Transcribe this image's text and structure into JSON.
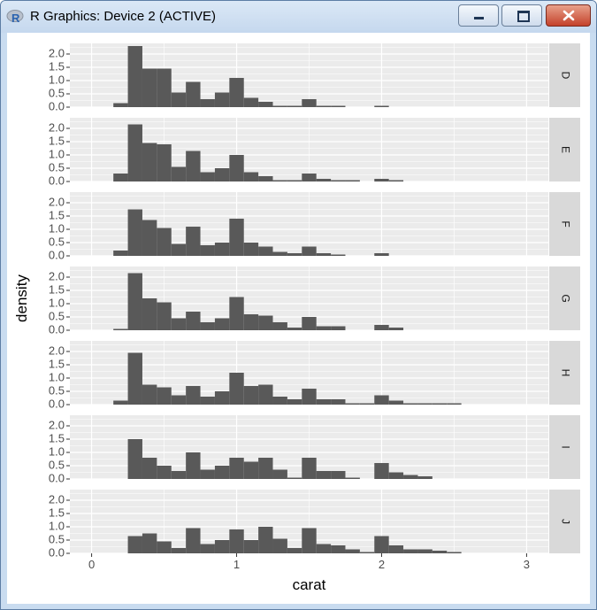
{
  "window": {
    "title": "R Graphics: Device 2 (ACTIVE)",
    "app_icon_letter": "R",
    "buttons": {
      "minimize": "minimize",
      "maximize": "maximize",
      "close": "close"
    }
  },
  "colors": {
    "panel_bg": "#ebebeb",
    "strip_bg": "#d9d9d9",
    "bar": "#595959",
    "grid": "#ffffff",
    "text": "#4d4d4d"
  },
  "chart_data": {
    "type": "bar",
    "title": "",
    "xlabel": "carat",
    "ylabel": "density",
    "xlim": [
      -0.15,
      3.15
    ],
    "ylim": [
      0,
      2.4
    ],
    "x_ticks": [
      0,
      1,
      2,
      3
    ],
    "x_tick_labels": [
      "0",
      "1",
      "2",
      "3"
    ],
    "y_ticks": [
      0,
      0.5,
      1,
      1.5,
      2
    ],
    "y_tick_labels": [
      "0.0",
      "0.5",
      "1.0",
      "1.5",
      "2.0"
    ],
    "bin_width": 0.1,
    "bin_starts": [
      0.15,
      0.25,
      0.35,
      0.45,
      0.55,
      0.65,
      0.75,
      0.85,
      0.95,
      1.05,
      1.15,
      1.25,
      1.35,
      1.45,
      1.55,
      1.65,
      1.75,
      1.85,
      1.95,
      2.05,
      2.15,
      2.25,
      2.35,
      2.45,
      2.55
    ],
    "facets": [
      {
        "label": "D",
        "values": [
          0.15,
          2.3,
          1.45,
          1.45,
          0.55,
          0.95,
          0.3,
          0.55,
          1.1,
          0.35,
          0.2,
          0.05,
          0.05,
          0.3,
          0.05,
          0.05,
          0,
          0,
          0.05,
          0,
          0,
          0,
          0,
          0,
          0
        ]
      },
      {
        "label": "E",
        "values": [
          0.3,
          2.15,
          1.45,
          1.4,
          0.55,
          1.15,
          0.35,
          0.5,
          1.0,
          0.35,
          0.2,
          0.05,
          0.05,
          0.3,
          0.1,
          0.05,
          0.05,
          0,
          0.1,
          0.05,
          0,
          0,
          0,
          0,
          0
        ]
      },
      {
        "label": "F",
        "values": [
          0.2,
          1.75,
          1.35,
          1.05,
          0.45,
          1.1,
          0.4,
          0.5,
          1.4,
          0.5,
          0.35,
          0.15,
          0.1,
          0.35,
          0.1,
          0.05,
          0,
          0,
          0.1,
          0,
          0,
          0,
          0,
          0,
          0
        ]
      },
      {
        "label": "G",
        "values": [
          0.05,
          2.15,
          1.2,
          1.05,
          0.45,
          0.7,
          0.3,
          0.45,
          1.25,
          0.6,
          0.55,
          0.3,
          0.1,
          0.5,
          0.15,
          0.15,
          0,
          0,
          0.2,
          0.1,
          0,
          0,
          0,
          0,
          0
        ]
      },
      {
        "label": "H",
        "values": [
          0.15,
          1.95,
          0.75,
          0.65,
          0.35,
          0.7,
          0.3,
          0.5,
          1.2,
          0.7,
          0.75,
          0.3,
          0.2,
          0.6,
          0.2,
          0.2,
          0.05,
          0.05,
          0.35,
          0.15,
          0.05,
          0.05,
          0.05,
          0.05,
          0
        ]
      },
      {
        "label": "I",
        "values": [
          0,
          1.5,
          0.8,
          0.5,
          0.3,
          1.0,
          0.35,
          0.5,
          0.8,
          0.65,
          0.8,
          0.35,
          0.05,
          0.8,
          0.3,
          0.3,
          0.05,
          0,
          0.6,
          0.25,
          0.15,
          0.1,
          0,
          0,
          0
        ]
      },
      {
        "label": "J",
        "values": [
          0,
          0.65,
          0.75,
          0.45,
          0.2,
          0.95,
          0.35,
          0.5,
          0.9,
          0.5,
          1.0,
          0.55,
          0.2,
          0.95,
          0.35,
          0.3,
          0.15,
          0.05,
          0.65,
          0.3,
          0.15,
          0.15,
          0.1,
          0.05,
          0
        ]
      }
    ]
  }
}
